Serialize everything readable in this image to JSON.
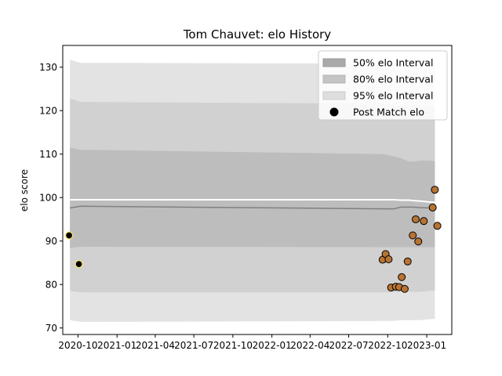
{
  "chart_data": {
    "type": "scatter",
    "title": "Tom Chauvet: elo History",
    "xlabel": "",
    "ylabel": "elo score",
    "xlim": [
      "2020-08-26",
      "2023-03-01"
    ],
    "ylim": [
      68.5,
      135
    ],
    "y_ticks": [
      70,
      80,
      90,
      100,
      110,
      120,
      130
    ],
    "x_ticks": [
      {
        "date": "2020-10-01",
        "label": "2020-10"
      },
      {
        "date": "2021-01-01",
        "label": "2021-01"
      },
      {
        "date": "2021-04-01",
        "label": "2021-04"
      },
      {
        "date": "2021-07-01",
        "label": "2021-07"
      },
      {
        "date": "2021-10-01",
        "label": "2021-10"
      },
      {
        "date": "2022-01-01",
        "label": "2022-01"
      },
      {
        "date": "2022-04-01",
        "label": "2022-04"
      },
      {
        "date": "2022-07-01",
        "label": "2022-07"
      },
      {
        "date": "2022-10-01",
        "label": "2022-10"
      },
      {
        "date": "2023-01-01",
        "label": "2023-01"
      }
    ],
    "legend": {
      "position": "top-right",
      "entries": [
        "50% elo Interval",
        "80% elo Interval",
        "95% elo Interval",
        "Post Match elo"
      ]
    },
    "colors": {
      "band50": "#bdbdbd",
      "band80": "#d1d1d1",
      "band95": "#e3e3e3",
      "mean_line": "#808080",
      "marker": "#b87333",
      "marker_highlight": "#000000",
      "highlight_ring": "#f5e663"
    },
    "bands": {
      "dates": [
        "2020-09-12",
        "2020-10-07",
        "2022-09-22",
        "2022-10-15",
        "2022-11-02",
        "2022-11-20",
        "2022-12-01",
        "2022-12-15",
        "2023-01-05",
        "2023-01-20"
      ],
      "center": [
        97.6,
        98.0,
        97.4,
        97.4,
        97.8,
        97.8,
        97.8,
        97.7,
        97.6,
        97.6
      ],
      "upper": [
        99.5,
        99.5,
        99.5,
        99.5,
        99.4,
        99.4,
        99.3,
        99.2,
        99.0,
        98.9
      ],
      "p50_low": [
        88.4,
        88.7,
        88.6,
        88.6,
        88.6,
        88.6,
        88.6,
        88.6,
        88.6,
        88.6
      ],
      "p50_high": [
        111.5,
        111.0,
        110.0,
        109.5,
        109.0,
        108.3,
        108.3,
        108.5,
        108.5,
        108.4
      ],
      "p80_low": [
        78.5,
        78.2,
        78.2,
        78.2,
        78.3,
        78.3,
        78.3,
        78.3,
        78.5,
        78.6
      ],
      "p80_high": [
        122.8,
        122.0,
        121.6,
        121.4,
        121.2,
        121.0,
        121.0,
        121.0,
        121.0,
        121.0
      ],
      "p95_low": [
        71.8,
        71.4,
        71.6,
        71.6,
        71.8,
        71.8,
        71.8,
        71.8,
        72.0,
        72.1
      ],
      "p95_high": [
        131.7,
        131.0,
        130.8,
        130.7,
        130.6,
        130.5,
        130.5,
        130.5,
        130.5,
        130.5
      ]
    },
    "points": [
      {
        "date": "2020-09-10",
        "elo": 91.3,
        "highlight": true
      },
      {
        "date": "2020-10-03",
        "elo": 84.7,
        "highlight": true
      },
      {
        "date": "2022-09-19",
        "elo": 85.7
      },
      {
        "date": "2022-09-26",
        "elo": 87.0
      },
      {
        "date": "2022-10-03",
        "elo": 85.8
      },
      {
        "date": "2022-10-09",
        "elo": 79.3
      },
      {
        "date": "2022-10-20",
        "elo": 79.5
      },
      {
        "date": "2022-10-28",
        "elo": 79.4
      },
      {
        "date": "2022-11-03",
        "elo": 81.7
      },
      {
        "date": "2022-11-10",
        "elo": 79.0
      },
      {
        "date": "2022-11-17",
        "elo": 85.3
      },
      {
        "date": "2022-11-29",
        "elo": 91.3
      },
      {
        "date": "2022-12-06",
        "elo": 95.0
      },
      {
        "date": "2022-12-12",
        "elo": 89.9
      },
      {
        "date": "2022-12-25",
        "elo": 94.6
      },
      {
        "date": "2023-01-15",
        "elo": 97.7
      },
      {
        "date": "2023-01-20",
        "elo": 101.8
      },
      {
        "date": "2023-01-26",
        "elo": 93.5
      }
    ]
  }
}
